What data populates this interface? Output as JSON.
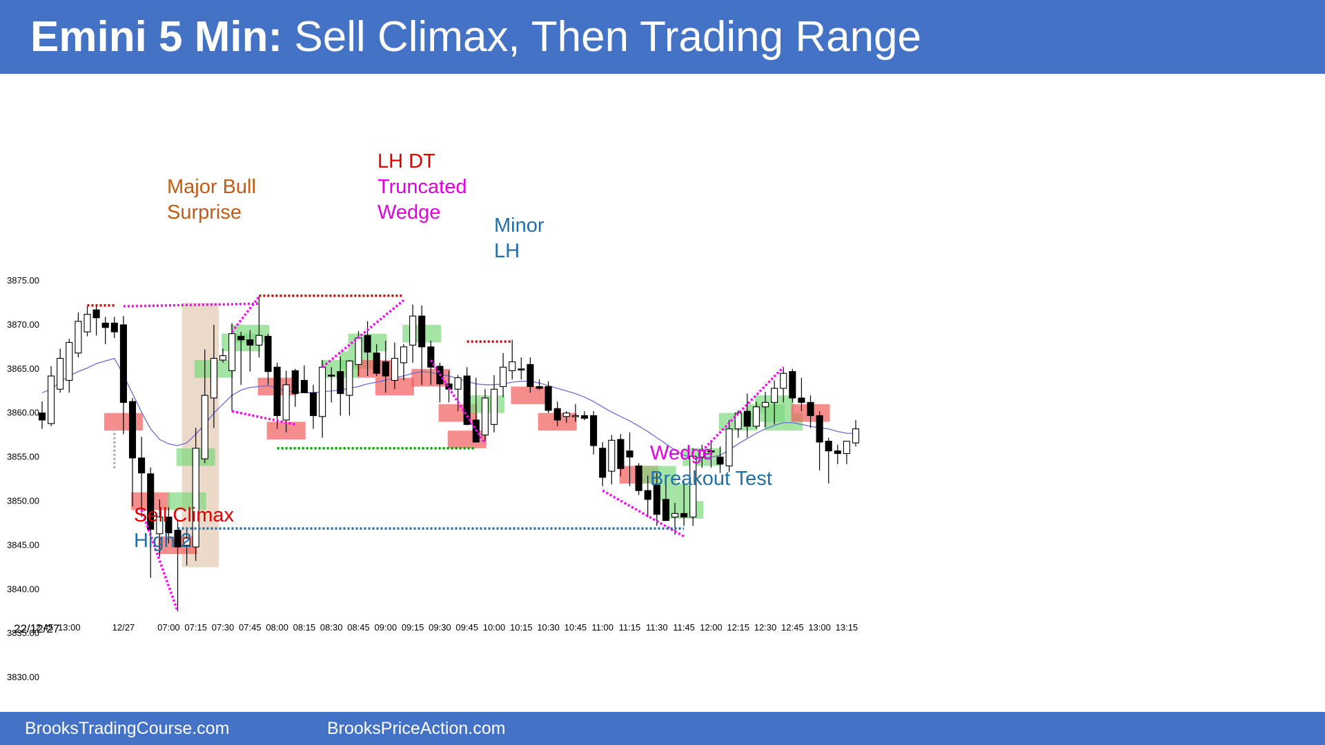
{
  "header": {
    "title_bold": "Emini 5 Min:",
    "title_rest": " Sell Climax, Then Trading Range",
    "background": "#4472c4"
  },
  "footer": {
    "left_text": "BrooksTradingCourse.com",
    "right_text": "BrooksPriceAction.com"
  },
  "chart_data": {
    "type": "candlestick",
    "title": "Emini 5 Min: Sell Climax, Then Trading Range",
    "date_label": "22/12/27",
    "ylim": [
      3830,
      3875
    ],
    "y_ticks": [
      "3875.00",
      "3870.00",
      "3865.00",
      "3860.00",
      "3855.00",
      "3850.00",
      "3845.00",
      "3840.00",
      "3835.00",
      "3830.00"
    ],
    "x_tick_labels": [
      "12:45",
      "13:00",
      "12/27",
      "07:00",
      "07:15",
      "07:30",
      "07:45",
      "08:00",
      "08:15",
      "08:30",
      "08:45",
      "09:00",
      "09:15",
      "09:30",
      "09:45",
      "10:00",
      "10:15",
      "10:30",
      "10:45",
      "11:00",
      "11:15",
      "11:30",
      "11:45",
      "12:00",
      "12:15",
      "12:30",
      "12:45",
      "13:00",
      "13:15"
    ],
    "x_tick_bars": [
      0,
      3,
      9,
      14,
      17,
      20,
      23,
      26,
      29,
      32,
      35,
      38,
      41,
      44,
      47,
      50,
      53,
      56,
      59,
      62,
      65,
      68,
      71,
      74,
      77,
      80,
      83,
      86,
      89
    ],
    "bars": [
      [
        3860.0,
        3861.3,
        3858.2,
        3859.2
      ],
      [
        3858.8,
        3865.3,
        3858.5,
        3864.2
      ],
      [
        3862.7,
        3867.3,
        3862.3,
        3866.2
      ],
      [
        3863.7,
        3868.4,
        3862.3,
        3868.0
      ],
      [
        3866.8,
        3871.4,
        3866.3,
        3870.4
      ],
      [
        3869.2,
        3872.1,
        3868.7,
        3871.2
      ],
      [
        3871.7,
        3872.2,
        3868.8,
        3870.8
      ],
      [
        3870.2,
        3870.9,
        3867.8,
        3869.7
      ],
      [
        3870.2,
        3870.9,
        3868.5,
        3869.2
      ],
      [
        3870.0,
        3871.0,
        3857.6,
        3861.2
      ],
      [
        3861.3,
        3861.7,
        3849.4,
        3854.9
      ],
      [
        3854.9,
        3857.3,
        3848.2,
        3853.2
      ],
      [
        3853.1,
        3853.8,
        3841.3,
        3846.8
      ],
      [
        3846.3,
        3850.2,
        3843.7,
        3848.2
      ],
      [
        3848.2,
        3849.3,
        3845.2,
        3846.4
      ],
      [
        3846.7,
        3847.8,
        3837.5,
        3844.8
      ],
      [
        3845.0,
        3846.8,
        3842.7,
        3845.8
      ],
      [
        3844.8,
        3858.3,
        3843.2,
        3856.0
      ],
      [
        3854.8,
        3867.2,
        3854.3,
        3862.0
      ],
      [
        3861.7,
        3870.0,
        3858.3,
        3866.2
      ],
      [
        3866.0,
        3867.3,
        3865.7,
        3866.5
      ],
      [
        3864.8,
        3870.2,
        3860.2,
        3869.0
      ],
      [
        3868.7,
        3869.2,
        3863.2,
        3868.3
      ],
      [
        3868.3,
        3869.4,
        3864.7,
        3867.7
      ],
      [
        3867.7,
        3873.2,
        3866.3,
        3868.8
      ],
      [
        3868.7,
        3869.0,
        3863.2,
        3864.7
      ],
      [
        3865.2,
        3865.7,
        3858.2,
        3859.7
      ],
      [
        3859.2,
        3864.8,
        3857.8,
        3863.2
      ],
      [
        3864.8,
        3865.0,
        3860.7,
        3862.2
      ],
      [
        3863.7,
        3865.4,
        3862.7,
        3862.3
      ],
      [
        3862.3,
        3863.2,
        3858.2,
        3859.7
      ],
      [
        3859.6,
        3866.0,
        3857.2,
        3865.2
      ],
      [
        3864.3,
        3865.2,
        3861.2,
        3864.2
      ],
      [
        3864.7,
        3866.4,
        3859.7,
        3862.2
      ],
      [
        3862.0,
        3866.0,
        3859.7,
        3865.9
      ],
      [
        3865.5,
        3869.3,
        3864.2,
        3868.5
      ],
      [
        3868.8,
        3870.4,
        3864.2,
        3866.9
      ],
      [
        3866.8,
        3867.8,
        3864.2,
        3864.5
      ],
      [
        3865.8,
        3868.2,
        3862.3,
        3864.2
      ],
      [
        3863.7,
        3868.0,
        3862.7,
        3866.2
      ],
      [
        3865.7,
        3867.8,
        3863.7,
        3867.5
      ],
      [
        3867.7,
        3872.3,
        3865.7,
        3871.0
      ],
      [
        3871.0,
        3872.2,
        3863.2,
        3867.5
      ],
      [
        3867.5,
        3868.2,
        3863.2,
        3865.2
      ],
      [
        3865.3,
        3865.7,
        3861.2,
        3863.3
      ],
      [
        3863.3,
        3864.8,
        3861.2,
        3862.7
      ],
      [
        3862.7,
        3864.3,
        3860.2,
        3864.0
      ],
      [
        3864.2,
        3865.2,
        3858.6,
        3858.7
      ],
      [
        3859.2,
        3864.0,
        3856.7,
        3856.7
      ],
      [
        3857.5,
        3862.7,
        3856.8,
        3861.7
      ],
      [
        3858.7,
        3864.3,
        3857.8,
        3862.7
      ],
      [
        3863.0,
        3866.8,
        3861.8,
        3865.2
      ],
      [
        3864.8,
        3868.3,
        3863.8,
        3865.8
      ],
      [
        3865.0,
        3866.3,
        3863.8,
        3864.9
      ],
      [
        3865.5,
        3866.3,
        3862.3,
        3863.0
      ],
      [
        3863.0,
        3863.8,
        3862.6,
        3862.8
      ],
      [
        3863.0,
        3863.6,
        3860.0,
        3860.3
      ],
      [
        3860.5,
        3861.3,
        3858.5,
        3859.2
      ],
      [
        3859.6,
        3860.2,
        3858.9,
        3860.0
      ],
      [
        3859.7,
        3861.0,
        3859.0,
        3859.7
      ],
      [
        3859.7,
        3860.2,
        3859.2,
        3859.4
      ],
      [
        3859.7,
        3860.2,
        3855.3,
        3856.3
      ],
      [
        3856.0,
        3856.7,
        3851.7,
        3852.7
      ],
      [
        3853.4,
        3857.5,
        3851.9,
        3856.9
      ],
      [
        3857.0,
        3857.6,
        3852.8,
        3853.7
      ],
      [
        3855.7,
        3857.8,
        3851.7,
        3855.0
      ],
      [
        3854.0,
        3854.3,
        3850.7,
        3851.2
      ],
      [
        3851.2,
        3852.9,
        3848.2,
        3850.2
      ],
      [
        3851.8,
        3853.2,
        3847.2,
        3848.5
      ],
      [
        3850.2,
        3852.2,
        3847.8,
        3847.8
      ],
      [
        3848.2,
        3849.8,
        3846.2,
        3848.6
      ],
      [
        3848.6,
        3852.2,
        3847.2,
        3848.2
      ],
      [
        3848.2,
        3856.0,
        3847.2,
        3855.1
      ],
      [
        3855.0,
        3856.4,
        3853.8,
        3855.7
      ],
      [
        3855.7,
        3856.7,
        3853.8,
        3855.6
      ],
      [
        3855.0,
        3856.2,
        3853.2,
        3854.2
      ],
      [
        3854.0,
        3859.2,
        3853.3,
        3858.2
      ],
      [
        3858.2,
        3860.3,
        3857.2,
        3860.0
      ],
      [
        3860.2,
        3862.2,
        3857.2,
        3858.5
      ],
      [
        3858.5,
        3861.3,
        3858.2,
        3860.7
      ],
      [
        3860.7,
        3862.4,
        3858.4,
        3861.2
      ],
      [
        3861.2,
        3863.7,
        3858.7,
        3862.8
      ],
      [
        3862.8,
        3865.2,
        3861.2,
        3864.5
      ],
      [
        3864.7,
        3865.0,
        3861.2,
        3861.7
      ],
      [
        3861.7,
        3864.0,
        3860.2,
        3861.2
      ],
      [
        3861.2,
        3862.0,
        3858.3,
        3859.7
      ],
      [
        3859.7,
        3860.2,
        3853.5,
        3856.7
      ],
      [
        3856.8,
        3857.2,
        3852.0,
        3855.7
      ],
      [
        3855.7,
        3856.4,
        3854.2,
        3855.4
      ],
      [
        3855.4,
        3856.5,
        3854.2,
        3856.8
      ],
      [
        3856.6,
        3859.2,
        3856.2,
        3858.2
      ]
    ],
    "moving_average": {
      "color": "#6b6bd6",
      "values": [
        3862.3,
        3862.7,
        3863.5,
        3864.2,
        3864.7,
        3865.1,
        3865.6,
        3865.9,
        3866.2,
        3864.3,
        3862.2,
        3860.1,
        3858.2,
        3857.0,
        3856.5,
        3856.3,
        3856.6,
        3857.6,
        3858.7,
        3860.0,
        3861.0,
        3862.0,
        3862.6,
        3862.9,
        3863.0,
        3863.1,
        3862.8,
        3862.5,
        3862.4,
        3862.3,
        3862.3,
        3862.4,
        3862.5,
        3862.6,
        3862.8,
        3863.0,
        3863.3,
        3863.5,
        3863.7,
        3864.0,
        3864.2,
        3864.5,
        3864.7,
        3864.6,
        3864.4,
        3864.2,
        3863.9,
        3863.6,
        3863.3,
        3863.2,
        3863.2,
        3863.3,
        3863.5,
        3863.6,
        3863.6,
        3863.4,
        3863.1,
        3862.8,
        3862.5,
        3862.2,
        3861.8,
        3861.3,
        3860.7,
        3860.1,
        3859.6,
        3859.1,
        3858.5,
        3857.9,
        3857.2,
        3856.5,
        3855.8,
        3855.2,
        3855.0,
        3854.9,
        3855.0,
        3855.2,
        3855.8,
        3856.5,
        3857.1,
        3857.7,
        3858.2,
        3858.6,
        3858.9,
        3858.9,
        3858.7,
        3858.5,
        3858.3,
        3858.2,
        3857.9,
        3857.7,
        3857.7
      ]
    },
    "signal_boxes": [
      {
        "side": "sell",
        "bar": 9,
        "lo": 3858.0,
        "hi": 3860.0
      },
      {
        "side": "sell",
        "bar": 12,
        "lo": 3849.0,
        "hi": 3851.0
      },
      {
        "side": "sell",
        "bar": 15,
        "lo": 3844.0,
        "hi": 3846.0
      },
      {
        "side": "buy",
        "bar": 16,
        "lo": 3849.0,
        "hi": 3851.0
      },
      {
        "side": "buy",
        "bar": 17,
        "lo": 3854.0,
        "hi": 3856.0
      },
      {
        "side": "buy",
        "bar": 19,
        "lo": 3864.0,
        "hi": 3866.0
      },
      {
        "side": "buy",
        "bar": 22,
        "lo": 3867.0,
        "hi": 3869.0
      },
      {
        "side": "buy",
        "bar": 23,
        "lo": 3868.0,
        "hi": 3870.0
      },
      {
        "side": "sell",
        "bar": 26,
        "lo": 3862.0,
        "hi": 3864.0
      },
      {
        "side": "sell",
        "bar": 27,
        "lo": 3857.0,
        "hi": 3859.0
      },
      {
        "side": "buy",
        "bar": 33,
        "lo": 3864.0,
        "hi": 3866.0
      },
      {
        "side": "buy",
        "bar": 35,
        "lo": 3865.0,
        "hi": 3867.0
      },
      {
        "side": "buy",
        "bar": 36,
        "lo": 3867.0,
        "hi": 3869.0
      },
      {
        "side": "sell",
        "bar": 37,
        "lo": 3864.0,
        "hi": 3866.0
      },
      {
        "side": "sell",
        "bar": 39,
        "lo": 3862.0,
        "hi": 3864.0
      },
      {
        "side": "buy",
        "bar": 42,
        "lo": 3868.0,
        "hi": 3870.0
      },
      {
        "side": "sell",
        "bar": 43,
        "lo": 3863.0,
        "hi": 3865.0
      },
      {
        "side": "sell",
        "bar": 46,
        "lo": 3859.0,
        "hi": 3861.0
      },
      {
        "side": "sell",
        "bar": 47,
        "lo": 3856.0,
        "hi": 3858.0
      },
      {
        "side": "buy",
        "bar": 49,
        "lo": 3860.0,
        "hi": 3862.0
      },
      {
        "side": "sell",
        "bar": 54,
        "lo": 3861.0,
        "hi": 3863.0
      },
      {
        "side": "sell",
        "bar": 57,
        "lo": 3858.0,
        "hi": 3860.0
      },
      {
        "side": "sell",
        "bar": 66,
        "lo": 3852.0,
        "hi": 3854.0
      },
      {
        "side": "buy",
        "bar": 68,
        "lo": 3852.0,
        "hi": 3854.0
      },
      {
        "side": "buy",
        "bar": 70,
        "lo": 3850.0,
        "hi": 3852.0
      },
      {
        "side": "buy",
        "bar": 71,
        "lo": 3848.0,
        "hi": 3850.0
      },
      {
        "side": "buy",
        "bar": 73,
        "lo": 3854.0,
        "hi": 3856.0
      },
      {
        "side": "buy",
        "bar": 77,
        "lo": 3858.0,
        "hi": 3860.0
      },
      {
        "side": "buy",
        "bar": 80,
        "lo": 3859.0,
        "hi": 3861.0
      },
      {
        "side": "buy",
        "bar": 81,
        "lo": 3860.0,
        "hi": 3862.0
      },
      {
        "side": "buy",
        "bar": 82,
        "lo": 3858.0,
        "hi": 3860.0
      },
      {
        "side": "sell",
        "bar": 85,
        "lo": 3859.0,
        "hi": 3861.0
      }
    ],
    "highlight_span": {
      "bar_from": 16,
      "bar_to": 19,
      "lo": 3842.5,
      "hi": 3872.5,
      "color": "#e8d3bf"
    },
    "lines": [
      {
        "color": "#ff00ff",
        "from": [
          9,
          3872.1
        ],
        "to": [
          24,
          3872.4
        ]
      },
      {
        "color": "#ff00ff",
        "from": [
          11,
          3849.0
        ],
        "to": [
          15,
          3837.5
        ]
      },
      {
        "color": "#ff00ff",
        "from": [
          21,
          3860.2
        ],
        "to": [
          28,
          3858.7
        ]
      },
      {
        "color": "#ff00ff",
        "from": [
          21,
          3869.2
        ],
        "to": [
          24,
          3873.2
        ]
      },
      {
        "color": "#ff00ff",
        "from": [
          31,
          3865.2
        ],
        "to": [
          40,
          3872.8
        ]
      },
      {
        "color": "#ff00ff",
        "from": [
          43,
          3866.0
        ],
        "to": [
          49,
          3856.5
        ]
      },
      {
        "color": "#ff00ff",
        "from": [
          62,
          3851.2
        ],
        "to": [
          71,
          3846.0
        ]
      },
      {
        "color": "#ff00ff",
        "from": [
          73,
          3855.7
        ],
        "to": [
          82,
          3865.2
        ]
      },
      {
        "color": "#e00000",
        "from": [
          5,
          3872.2
        ],
        "to": [
          8,
          3872.2
        ]
      },
      {
        "color": "#e00000",
        "from": [
          24,
          3873.3
        ],
        "to": [
          40,
          3873.3
        ]
      },
      {
        "color": "#e00000",
        "from": [
          47,
          3868.1
        ],
        "to": [
          52,
          3868.1
        ]
      },
      {
        "color": "#00a000",
        "from": [
          26,
          3856.0
        ],
        "to": [
          48,
          3856.0
        ]
      },
      {
        "color": "#1f6fa8",
        "from": [
          15,
          3846.9
        ],
        "to": [
          71,
          3846.9
        ]
      },
      {
        "color": "#b0b0b0",
        "from": [
          8,
          3858.2
        ],
        "to": [
          8,
          3853.5
        ]
      }
    ],
    "annotations": [
      {
        "lines": [
          {
            "text": "Major Bull",
            "color": "#c55a11"
          },
          {
            "text": "Surprise",
            "color": "#c55a11"
          }
        ],
        "x": 242,
        "y": 254
      },
      {
        "lines": [
          {
            "text": "LH DT",
            "color": "#e00000"
          },
          {
            "text": "Truncated",
            "color": "#e000e0"
          },
          {
            "text": "Wedge",
            "color": "#e000e0"
          }
        ],
        "x": 547,
        "y": 217
      },
      {
        "lines": [
          {
            "text": "Minor",
            "color": "#1f6fa8"
          },
          {
            "text": "LH",
            "color": "#1f6fa8"
          }
        ],
        "x": 716,
        "y": 310
      },
      {
        "lines": [
          {
            "text": "Sell Climax",
            "color": "#e00000"
          },
          {
            "text": "High 2",
            "color": "#1f6fa8"
          }
        ],
        "x": 194,
        "y": 730
      },
      {
        "lines": [
          {
            "text": "Wedge",
            "color": "#e000e0"
          },
          {
            "text": "Breakout Test",
            "color": "#1f6fa8"
          }
        ],
        "x": 942,
        "y": 640
      }
    ],
    "colors": {
      "bull_body": "#ffffff",
      "bear_body": "#000000",
      "buy_box": "#7ed87e",
      "sell_box": "#f25c5c"
    }
  }
}
